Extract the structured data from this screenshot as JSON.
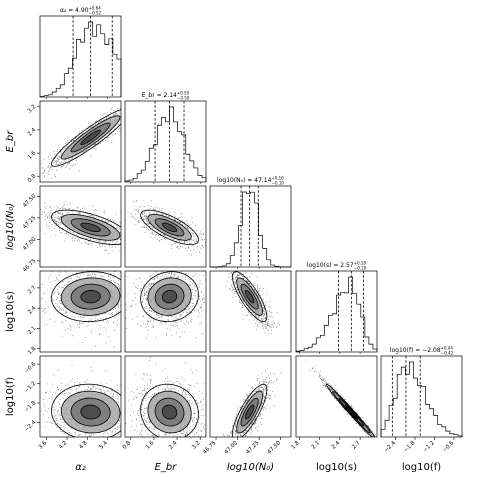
{
  "chart_data": {
    "type": "corner",
    "parameters": [
      {
        "label": "α₂",
        "italic": true,
        "title": "α₂ = 4.90",
        "sup": "+0.64",
        "sub": "−0.52",
        "median": 4.9,
        "lo": 4.38,
        "hi": 5.54,
        "range": [
          3.4,
          5.8
        ],
        "ticks": [
          3.6,
          4.2,
          4.8,
          5.4
        ],
        "tick_labels": [
          "3.6",
          "4.2",
          "4.8",
          "5.4"
        ],
        "hist_shape": "skew_right"
      },
      {
        "label": "E_br",
        "italic": true,
        "title": "E_br = 2.14",
        "sup": "+0.50",
        "sub": "−0.50",
        "median": 2.14,
        "lo": 1.64,
        "hi": 2.64,
        "range": [
          0.6,
          3.4
        ],
        "ticks": [
          0.8,
          1.6,
          2.4,
          3.2
        ],
        "tick_labels": [
          "0.8",
          "1.6",
          "2.4",
          "3.2"
        ],
        "hist_shape": "normal"
      },
      {
        "label": "log10(N₀)",
        "italic": true,
        "title": "log10(N₀) = 47.14",
        "sup": "+0.10",
        "sub": "−0.10",
        "median": 47.14,
        "lo": 47.04,
        "hi": 47.24,
        "range": [
          46.68,
          47.62
        ],
        "ticks": [
          46.75,
          47.0,
          47.25,
          47.5
        ],
        "tick_labels": [
          "46.75",
          "47.00",
          "47.25",
          "47.50"
        ],
        "hist_shape": "normal"
      },
      {
        "label": "log10(s)",
        "italic": false,
        "title": "log10(s) = 2.57",
        "sup": "+0.18",
        "sub": "−0.19",
        "median": 2.57,
        "lo": 2.38,
        "hi": 2.75,
        "range": [
          1.75,
          2.95
        ],
        "ticks": [
          1.8,
          2.1,
          2.4,
          2.7
        ],
        "tick_labels": [
          "1.8",
          "2.1",
          "2.4",
          "2.7"
        ],
        "hist_shape": "skew_left"
      },
      {
        "label": "log10(f)",
        "italic": false,
        "title": "log10(f) = −2.08",
        "sup": "+0.44",
        "sub": "−0.42",
        "median": -2.08,
        "lo": -2.5,
        "hi": -1.64,
        "range": [
          -2.85,
          -0.35
        ],
        "ticks": [
          -2.4,
          -1.8,
          -1.2,
          -0.6
        ],
        "tick_labels": [
          "−2.4",
          "−1.8",
          "−1.2",
          "−0.6"
        ],
        "hist_shape": "skew_right"
      }
    ],
    "pair_correlations": {
      "1-0": 0.92,
      "2-0": -0.62,
      "2-1": -0.72,
      "3-0": 0.05,
      "3-1": 0.08,
      "3-2": -0.8,
      "4-0": -0.05,
      "4-1": -0.08,
      "4-2": 0.8,
      "4-3": -0.99
    },
    "contour_levels": [
      0.5,
      1.0,
      1.5,
      2.0
    ],
    "colors": {
      "points": "#000000",
      "contour_line": "#000000",
      "quantile_line": "#000000"
    }
  }
}
